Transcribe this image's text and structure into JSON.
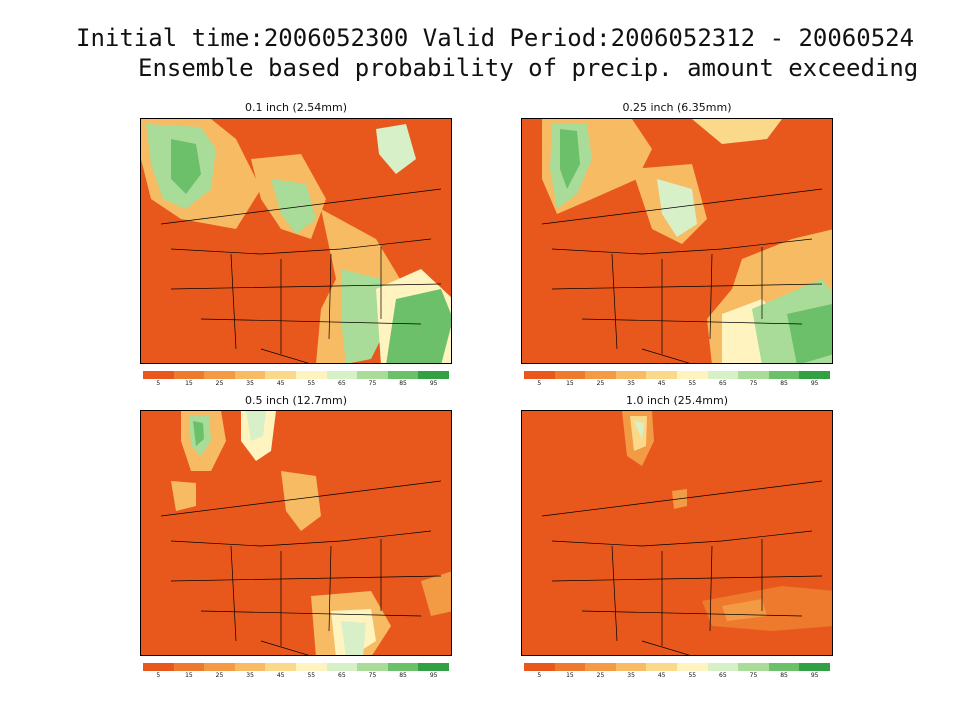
{
  "title": {
    "line1": "Initial time:2006052300  Valid Period:2006052312 - 20060524",
    "line2": "Ensemble based probability of precip. amount exceeding"
  },
  "colors": {
    "background": "#e8581c",
    "scale": [
      "#e8581c",
      "#ee7a2e",
      "#f39a45",
      "#f7bb63",
      "#fbd98a",
      "#fff3c0",
      "#d8f0c8",
      "#a8dc98",
      "#6cc06a",
      "#32a043"
    ],
    "contour": "#000000"
  },
  "legend": {
    "ticks": [
      "5",
      "15",
      "25",
      "35",
      "45",
      "55",
      "65",
      "75",
      "85",
      "95"
    ]
  },
  "panels": [
    {
      "label": "0.1 inch (2.54mm)"
    },
    {
      "label": "0.25 inch (6.35mm)"
    },
    {
      "label": "0.5 inch (12.7mm)"
    },
    {
      "label": "1.0 inch (25.4mm)"
    }
  ]
}
